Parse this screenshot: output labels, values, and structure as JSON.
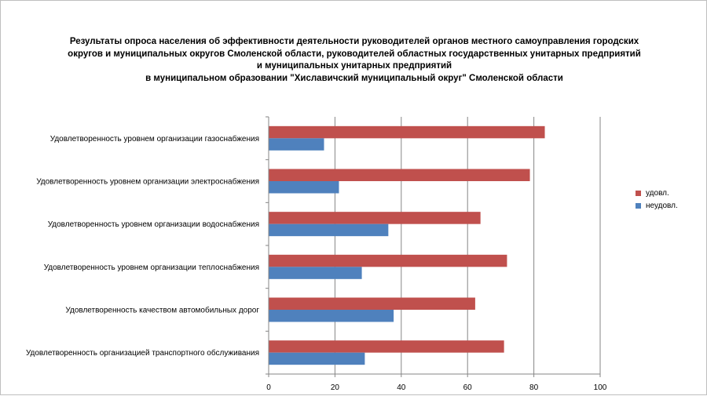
{
  "chart_data": {
    "type": "bar",
    "orientation": "horizontal",
    "title": [
      "Результаты опроса населения об эффективности деятельности руководителей органов местного самоуправления городских",
      "округов и муниципальных округов Смоленской области, руководителей областных государственных унитарных предприятий",
      "и муниципальных унитарных предприятий",
      "в муниципальном образовании \"Хиславичский муниципальный округ\" Смоленской области"
    ],
    "categories": [
      "Удовлетворенность уровнем организации газоснабжения",
      "Удовлетворенность уровнем организации электроснабжения",
      "Удовлетворенность уровнем организации водоснабжения",
      "Удовлетворенность уровнем организации теплоснабжения",
      "Удовлетворенность качеством автомобильных дорог",
      "Удовлетворенность организацией транспортного обслуживания"
    ],
    "series": [
      {
        "name": "удовл.",
        "color": "#c0504d",
        "values": [
          83.3,
          78.8,
          63.9,
          71.9,
          62.3,
          71.0
        ]
      },
      {
        "name": "неудовл.",
        "color": "#4f81bd",
        "values": [
          16.7,
          21.2,
          36.1,
          28.1,
          37.7,
          29.0
        ]
      }
    ],
    "xlim": [
      0,
      100
    ],
    "xticks": [
      "0",
      "20",
      "40",
      "60",
      "80",
      "100"
    ],
    "xlabel": "",
    "ylabel": "",
    "grid": true,
    "legend": "right"
  }
}
